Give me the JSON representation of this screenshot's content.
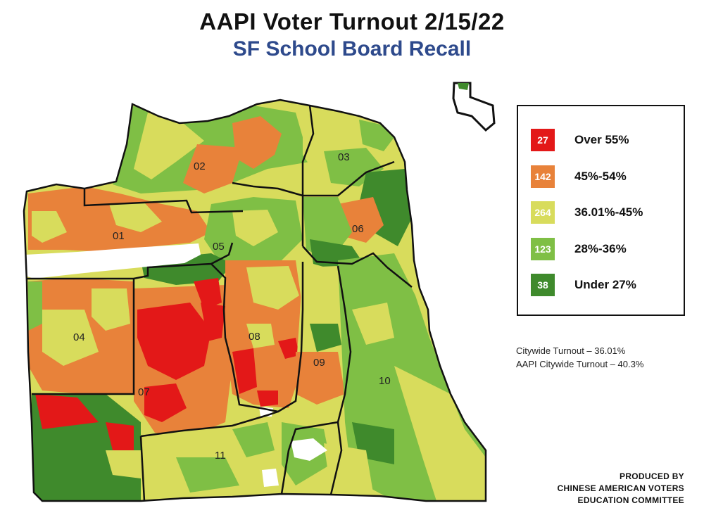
{
  "header": {
    "title": "AAPI Voter Turnout 2/15/22",
    "subtitle": "SF School Board Recall"
  },
  "colors": {
    "over_55": "#e31818",
    "r45_54": "#e8823a",
    "r36_45": "#d8dc5c",
    "r28_36": "#7fbf45",
    "under_27": "#3f8a2c",
    "subtitle": "#2e4a8c"
  },
  "legend": {
    "items": [
      {
        "count": "27",
        "label": "Over 55%"
      },
      {
        "count": "142",
        "label": "45%-54%"
      },
      {
        "count": "264",
        "label": "36.01%-45%"
      },
      {
        "count": "123",
        "label": "28%-36%"
      },
      {
        "count": "38",
        "label": "Under 27%"
      }
    ]
  },
  "stats": {
    "citywide": "Citywide Turnout – 36.01%",
    "aapi": "AAPI Citywide Turnout – 40.3%"
  },
  "credit": {
    "line1": "PRODUCED BY",
    "line2": "CHINESE AMERICAN VOTERS",
    "line3": "EDUCATION COMMITTEE"
  },
  "map": {
    "districts": [
      "01",
      "02",
      "03",
      "04",
      "05",
      "06",
      "07",
      "08",
      "09",
      "10",
      "11"
    ]
  }
}
